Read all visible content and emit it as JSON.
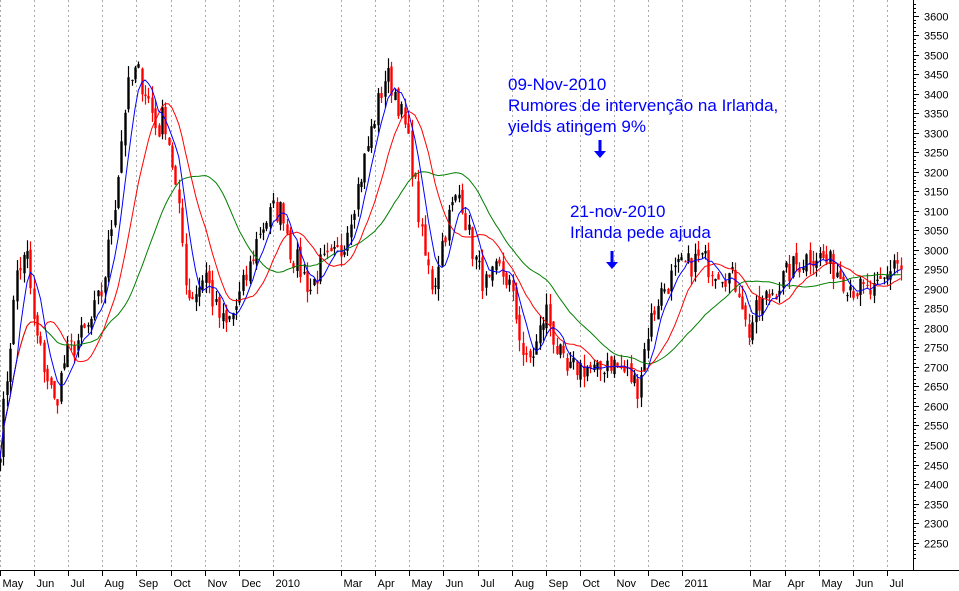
{
  "chart_data": {
    "type": "candlestick",
    "title": "",
    "xlabel": "",
    "ylabel": "",
    "ylim": [
      2190,
      3640
    ],
    "y_ticks": [
      2250,
      2300,
      2350,
      2400,
      2450,
      2500,
      2550,
      2600,
      2650,
      2700,
      2750,
      2800,
      2850,
      2900,
      2950,
      3000,
      3050,
      3100,
      3150,
      3200,
      3250,
      3300,
      3350,
      3400,
      3450,
      3500,
      3550,
      3600
    ],
    "x_ticks": [
      "May",
      "Jun",
      "Jul",
      "Aug",
      "Sep",
      "Oct",
      "Nov",
      "Dec",
      "2010",
      "Mar",
      "Apr",
      "May",
      "Jun",
      "Jul",
      "Aug",
      "Sep",
      "Oct",
      "Nov",
      "Dec",
      "2011",
      "Mar",
      "Apr",
      "May",
      "Jun",
      "Jul"
    ],
    "x_tick_months": [
      0,
      1,
      2,
      3,
      4,
      5,
      6,
      7,
      8,
      10,
      11,
      12,
      13,
      14,
      15,
      16,
      17,
      18,
      19,
      20,
      22,
      23,
      24,
      25,
      26
    ],
    "x_range": [
      0,
      26.5
    ],
    "grid": true,
    "y_axis_position": "right",
    "colors": {
      "up": "#000000",
      "down": "#ff0000",
      "ma_fast": "#0000ff",
      "ma_mid": "#ff0000",
      "ma_slow": "#008000",
      "annotation": "#0000ff",
      "grid": "#aaaaaa"
    },
    "price_path": [
      [
        0,
        2500
      ],
      [
        0.5,
        2950
      ],
      [
        0.8,
        2980
      ],
      [
        1.0,
        2800
      ],
      [
        1.3,
        2700
      ],
      [
        1.6,
        2600
      ],
      [
        1.9,
        2720
      ],
      [
        2.2,
        2760
      ],
      [
        2.6,
        2800
      ],
      [
        3.0,
        2900
      ],
      [
        3.4,
        3150
      ],
      [
        3.7,
        3400
      ],
      [
        4.0,
        3460
      ],
      [
        4.3,
        3400
      ],
      [
        4.6,
        3300
      ],
      [
        4.8,
        3350
      ],
      [
        5.0,
        3250
      ],
      [
        5.3,
        3050
      ],
      [
        5.5,
        2880
      ],
      [
        5.8,
        2900
      ],
      [
        6.0,
        2950
      ],
      [
        6.3,
        2850
      ],
      [
        6.6,
        2800
      ],
      [
        6.9,
        2850
      ],
      [
        7.3,
        2950
      ],
      [
        7.6,
        3050
      ],
      [
        8.0,
        3100
      ],
      [
        8.3,
        3100
      ],
      [
        8.5,
        3000
      ],
      [
        8.8,
        2950
      ],
      [
        9.1,
        2900
      ],
      [
        9.4,
        2960
      ],
      [
        9.7,
        2970
      ],
      [
        10.0,
        3000
      ],
      [
        10.3,
        3100
      ],
      [
        10.6,
        3200
      ],
      [
        11.0,
        3350
      ],
      [
        11.3,
        3450
      ],
      [
        11.6,
        3400
      ],
      [
        11.9,
        3300
      ],
      [
        12.1,
        3200
      ],
      [
        12.4,
        3000
      ],
      [
        12.7,
        2900
      ],
      [
        12.9,
        3000
      ],
      [
        13.2,
        3100
      ],
      [
        13.5,
        3150
      ],
      [
        13.7,
        3050
      ],
      [
        14.0,
        2950
      ],
      [
        14.3,
        2900
      ],
      [
        14.6,
        2950
      ],
      [
        14.9,
        2920
      ],
      [
        15.2,
        2800
      ],
      [
        15.4,
        2700
      ],
      [
        15.7,
        2750
      ],
      [
        16.0,
        2850
      ],
      [
        16.3,
        2750
      ],
      [
        16.6,
        2680
      ],
      [
        16.9,
        2700
      ],
      [
        17.2,
        2700
      ],
      [
        17.5,
        2680
      ],
      [
        17.8,
        2720
      ],
      [
        18.1,
        2700
      ],
      [
        18.4,
        2680
      ],
      [
        18.7,
        2650
      ],
      [
        19.0,
        2800
      ],
      [
        19.3,
        2880
      ],
      [
        19.6,
        2920
      ],
      [
        19.9,
        2950
      ],
      [
        20.2,
        2960
      ],
      [
        20.5,
        2980
      ],
      [
        20.8,
        2960
      ],
      [
        21.1,
        2950
      ],
      [
        21.4,
        2930
      ],
      [
        21.7,
        2900
      ],
      [
        21.9,
        2780
      ],
      [
        22.1,
        2830
      ],
      [
        22.4,
        2870
      ],
      [
        22.7,
        2900
      ],
      [
        23.0,
        2930
      ],
      [
        23.3,
        2960
      ],
      [
        23.6,
        2980
      ],
      [
        23.9,
        2990
      ],
      [
        24.2,
        2970
      ],
      [
        24.5,
        2950
      ],
      [
        24.8,
        2920
      ],
      [
        25.1,
        2900
      ],
      [
        25.4,
        2890
      ],
      [
        25.7,
        2890
      ],
      [
        26.0,
        2930
      ],
      [
        26.2,
        2980
      ],
      [
        26.4,
        2950
      ]
    ],
    "annotations": [
      {
        "lines": [
          "09-Nov-2010",
          "Rumores de intervenção na Irlanda,",
          "yields atingem 9%"
        ],
        "arrow": "down",
        "arrow_month": 17.6
      },
      {
        "lines": [
          "21-nov-2010",
          "Irlanda pede ajuda"
        ],
        "arrow": "down",
        "arrow_month": 17.95
      }
    ]
  }
}
